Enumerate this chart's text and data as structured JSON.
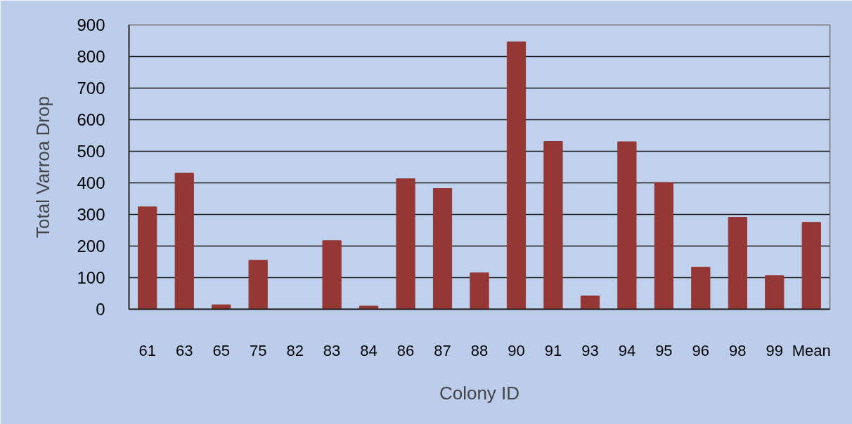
{
  "chart_data": {
    "type": "bar",
    "xlabel": "Colony ID",
    "ylabel": "Total Varroa Drop",
    "categories": [
      "61",
      "63",
      "65",
      "75",
      "82",
      "83",
      "84",
      "86",
      "87",
      "88",
      "90",
      "91",
      "93",
      "94",
      "95",
      "96",
      "98",
      "99",
      "Mean"
    ],
    "values": [
      324,
      431,
      14,
      155,
      0,
      217,
      10,
      413,
      382,
      115,
      846,
      531,
      42,
      530,
      401,
      133,
      291,
      106,
      275
    ],
    "color": "#953735",
    "ylim": [
      0,
      900
    ],
    "yticks": [
      0,
      100,
      200,
      300,
      400,
      500,
      600,
      700,
      800,
      900
    ],
    "grid": "y"
  }
}
